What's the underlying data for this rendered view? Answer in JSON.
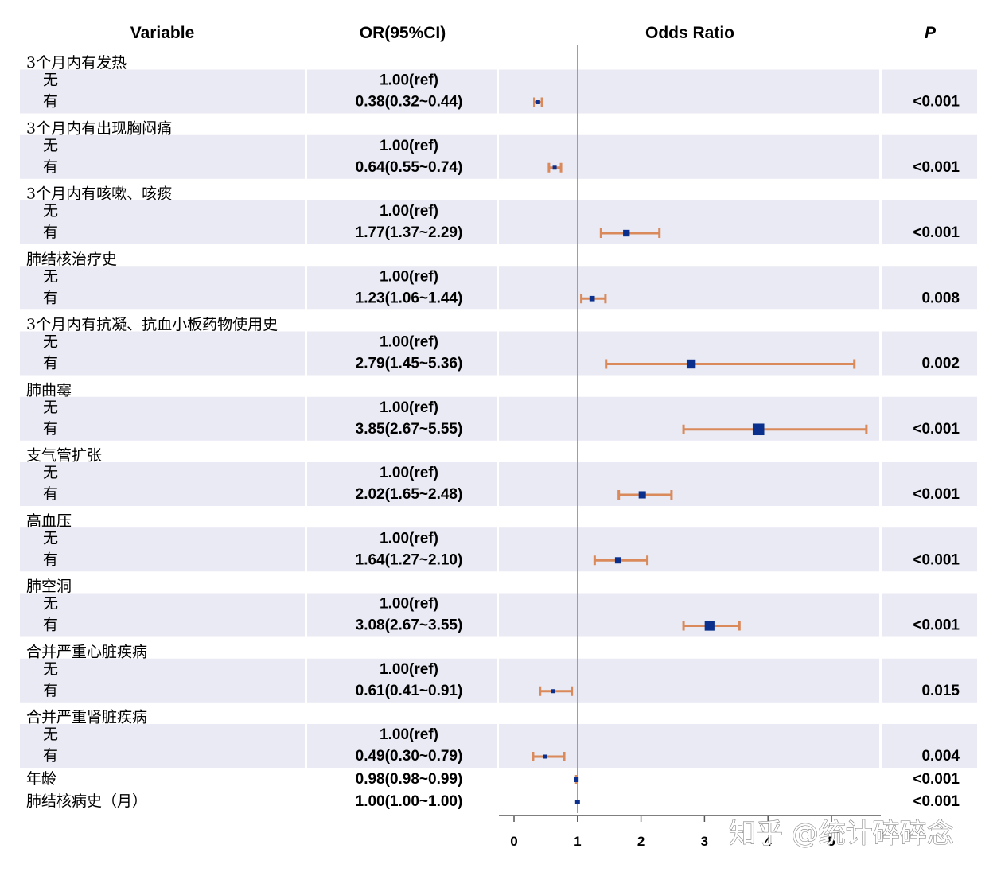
{
  "headers": {
    "variable": "Variable",
    "or": "OR(95%CI)",
    "plot": "Odds Ratio",
    "p": "P"
  },
  "watermark": "知乎 @统计碎碎念",
  "colors": {
    "band": "#e9eaf3",
    "ci": "#d9895a",
    "point": "#0a2f8c",
    "axis": "#555555",
    "ref_line": "#9a9a9a"
  },
  "chart_data": {
    "type": "forest",
    "xlabel": "",
    "ref_value": 1,
    "xlim": [
      0,
      5
    ],
    "xticks": [
      "0",
      "1",
      "2",
      "3",
      "4",
      "5"
    ],
    "groups": [
      {
        "name": "3个月内有发热",
        "rows": [
          {
            "level": "无",
            "or_text": "1.00(ref)"
          },
          {
            "level": "有",
            "or_text": "0.38(0.32~0.44)",
            "or": 0.38,
            "lo": 0.32,
            "hi": 0.44,
            "p": "<0.001"
          }
        ]
      },
      {
        "name": "3个月内有出现胸闷痛",
        "rows": [
          {
            "level": "无",
            "or_text": "1.00(ref)"
          },
          {
            "level": "有",
            "or_text": "0.64(0.55~0.74)",
            "or": 0.64,
            "lo": 0.55,
            "hi": 0.74,
            "p": "<0.001"
          }
        ]
      },
      {
        "name": "3个月内有咳嗽、咳痰",
        "rows": [
          {
            "level": "无",
            "or_text": "1.00(ref)"
          },
          {
            "level": "有",
            "or_text": "1.77(1.37~2.29)",
            "or": 1.77,
            "lo": 1.37,
            "hi": 2.29,
            "p": "<0.001"
          }
        ]
      },
      {
        "name": "肺结核治疗史",
        "rows": [
          {
            "level": "无",
            "or_text": "1.00(ref)"
          },
          {
            "level": "有",
            "or_text": "1.23(1.06~1.44)",
            "or": 1.23,
            "lo": 1.06,
            "hi": 1.44,
            "p": "0.008"
          }
        ]
      },
      {
        "name": "3个月内有抗凝、抗血小板药物使用史",
        "rows": [
          {
            "level": "无",
            "or_text": "1.00(ref)"
          },
          {
            "level": "有",
            "or_text": "2.79(1.45~5.36)",
            "or": 2.79,
            "lo": 1.45,
            "hi": 5.36,
            "p": "0.002"
          }
        ]
      },
      {
        "name": "肺曲霉",
        "rows": [
          {
            "level": "无",
            "or_text": "1.00(ref)"
          },
          {
            "level": "有",
            "or_text": "3.85(2.67~5.55)",
            "or": 3.85,
            "lo": 2.67,
            "hi": 5.55,
            "p": "<0.001"
          }
        ]
      },
      {
        "name": "支气管扩张",
        "rows": [
          {
            "level": "无",
            "or_text": "1.00(ref)"
          },
          {
            "level": "有",
            "or_text": "2.02(1.65~2.48)",
            "or": 2.02,
            "lo": 1.65,
            "hi": 2.48,
            "p": "<0.001"
          }
        ]
      },
      {
        "name": "高血压",
        "rows": [
          {
            "level": "无",
            "or_text": "1.00(ref)"
          },
          {
            "level": "有",
            "or_text": "1.64(1.27~2.10)",
            "or": 1.64,
            "lo": 1.27,
            "hi": 2.1,
            "p": "<0.001"
          }
        ]
      },
      {
        "name": "肺空洞",
        "rows": [
          {
            "level": "无",
            "or_text": "1.00(ref)"
          },
          {
            "level": "有",
            "or_text": "3.08(2.67~3.55)",
            "or": 3.08,
            "lo": 2.67,
            "hi": 3.55,
            "p": "<0.001"
          }
        ]
      },
      {
        "name": "合并严重心脏疾病",
        "rows": [
          {
            "level": "无",
            "or_text": "1.00(ref)"
          },
          {
            "level": "有",
            "or_text": "0.61(0.41~0.91)",
            "or": 0.61,
            "lo": 0.41,
            "hi": 0.91,
            "p": "0.015"
          }
        ]
      },
      {
        "name": "合并严重肾脏疾病",
        "rows": [
          {
            "level": "无",
            "or_text": "1.00(ref)"
          },
          {
            "level": "有",
            "or_text": "0.49(0.30~0.79)",
            "or": 0.49,
            "lo": 0.3,
            "hi": 0.79,
            "p": "0.004"
          }
        ]
      }
    ],
    "singles": [
      {
        "name": "年龄",
        "or_text": "0.98(0.98~0.99)",
        "or": 0.98,
        "lo": 0.98,
        "hi": 0.99,
        "p": "<0.001"
      },
      {
        "name": "肺结核病史（月）",
        "or_text": "1.00(1.00~1.00)",
        "or": 1.0,
        "lo": 1.0,
        "hi": 1.0,
        "p": "<0.001"
      }
    ]
  }
}
